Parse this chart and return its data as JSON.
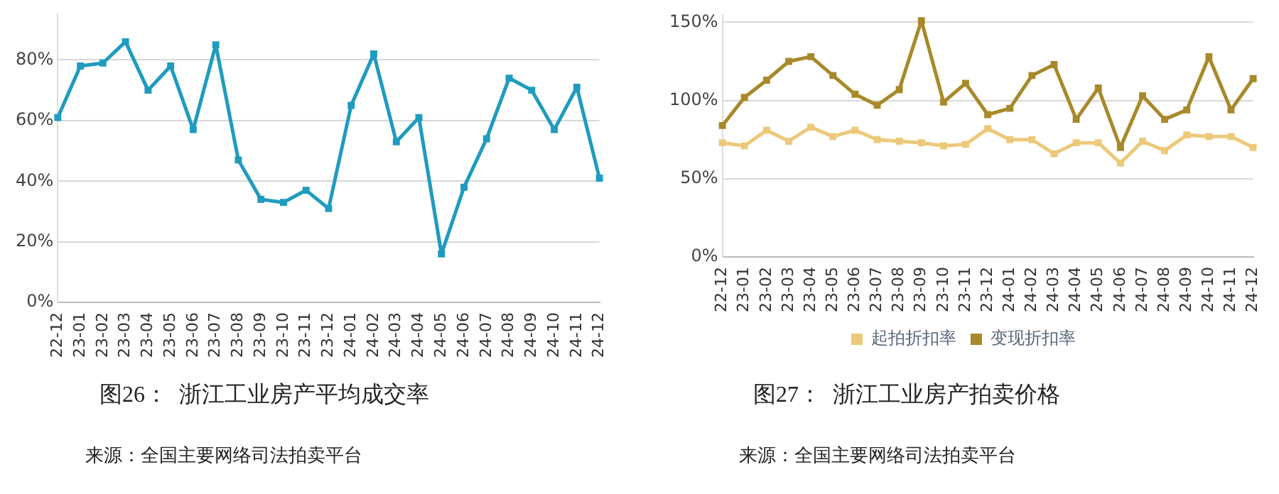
{
  "chart_data": [
    {
      "type": "line",
      "title": "图26：  浙江工业房产平均成交率",
      "annotations": [
        "来源：全国主要网络司法拍卖平台"
      ],
      "categories": [
        "22-12",
        "23-01",
        "23-02",
        "23-03",
        "23-04",
        "23-05",
        "23-06",
        "23-07",
        "23-08",
        "23-09",
        "23-10",
        "23-11",
        "23-12",
        "24-01",
        "24-02",
        "24-03",
        "24-04",
        "24-05",
        "24-06",
        "24-07",
        "24-08",
        "24-09",
        "24-10",
        "24-11",
        "24-12"
      ],
      "series": [
        {
          "color": "#1f9bbf",
          "values": [
            61,
            78,
            79,
            86,
            70,
            78,
            57,
            85,
            47,
            34,
            33,
            37,
            31,
            65,
            82,
            53,
            61,
            16,
            38,
            54,
            74,
            70,
            57,
            71,
            41
          ]
        }
      ],
      "ylim": [
        0,
        95
      ],
      "yticks": [
        {
          "value": 0,
          "label": "0%"
        },
        {
          "value": 20,
          "label": "20%"
        },
        {
          "value": 40,
          "label": "40%"
        },
        {
          "value": 60,
          "label": "60%"
        },
        {
          "value": 80,
          "label": "80%"
        }
      ],
      "grid": "y",
      "marker": "square"
    },
    {
      "type": "line",
      "title": "图27：  浙江工业房产拍卖价格",
      "annotations": [
        "来源：全国主要网络司法拍卖平台"
      ],
      "categories": [
        "22-12",
        "23-01",
        "23-02",
        "23-03",
        "23-04",
        "23-05",
        "23-06",
        "23-07",
        "23-08",
        "23-09",
        "23-10",
        "23-11",
        "23-12",
        "24-01",
        "24-02",
        "24-03",
        "24-04",
        "24-05",
        "24-06",
        "24-07",
        "24-08",
        "24-09",
        "24-10",
        "24-11",
        "24-12"
      ],
      "series": [
        {
          "name": "起拍折扣率",
          "color": "#ecc97a",
          "values": [
            73,
            71,
            81,
            74,
            83,
            77,
            81,
            75,
            74,
            73,
            71,
            72,
            82,
            75,
            75,
            66,
            73,
            73,
            60,
            74,
            68,
            78,
            77,
            77,
            70
          ]
        },
        {
          "name": "变现折扣率",
          "color": "#a8892a",
          "values": [
            84,
            102,
            113,
            125,
            128,
            116,
            104,
            97,
            107,
            151,
            99,
            111,
            91,
            95,
            116,
            123,
            88,
            108,
            70,
            103,
            88,
            94,
            128,
            94,
            114
          ]
        }
      ],
      "ylim": [
        0,
        155
      ],
      "yticks": [
        {
          "value": 0,
          "label": "0%"
        },
        {
          "value": 50,
          "label": "50%"
        },
        {
          "value": 100,
          "label": "100%"
        },
        {
          "value": 150,
          "label": "150%"
        }
      ],
      "grid": "y",
      "marker": "square",
      "legend": "bottom"
    }
  ]
}
